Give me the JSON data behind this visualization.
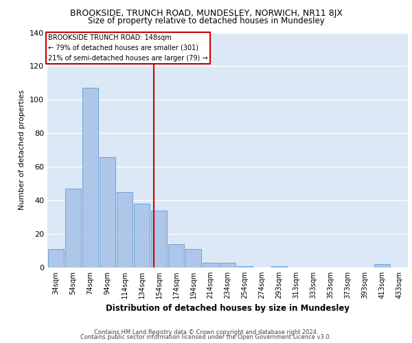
{
  "title": "BROOKSIDE, TRUNCH ROAD, MUNDESLEY, NORWICH, NR11 8JX",
  "subtitle": "Size of property relative to detached houses in Mundesley",
  "xlabel": "Distribution of detached houses by size in Mundesley",
  "ylabel": "Number of detached properties",
  "categories": [
    "34sqm",
    "54sqm",
    "74sqm",
    "94sqm",
    "114sqm",
    "134sqm",
    "154sqm",
    "174sqm",
    "194sqm",
    "214sqm",
    "234sqm",
    "254sqm",
    "274sqm",
    "293sqm",
    "313sqm",
    "333sqm",
    "353sqm",
    "373sqm",
    "393sqm",
    "413sqm",
    "433sqm"
  ],
  "values": [
    11,
    47,
    107,
    66,
    45,
    38,
    34,
    14,
    11,
    3,
    3,
    1,
    0,
    1,
    0,
    0,
    0,
    0,
    0,
    2,
    0
  ],
  "bar_color": "#aec6e8",
  "bar_edge_color": "#5b9bd5",
  "vline_color": "#cc0000",
  "vline_label": "BROOKSIDE TRUNCH ROAD: 148sqm",
  "annotation_line1": "← 79% of detached houses are smaller (301)",
  "annotation_line2": "21% of semi-detached houses are larger (79) →",
  "box_color": "#cc0000",
  "background_color": "#dce8f5",
  "grid_color": "#ffffff",
  "ylim": [
    0,
    140
  ],
  "yticks": [
    0,
    20,
    40,
    60,
    80,
    100,
    120,
    140
  ],
  "footer1": "Contains HM Land Registry data © Crown copyright and database right 2024.",
  "footer2": "Contains public sector information licensed under the Open Government Licence v3.0."
}
